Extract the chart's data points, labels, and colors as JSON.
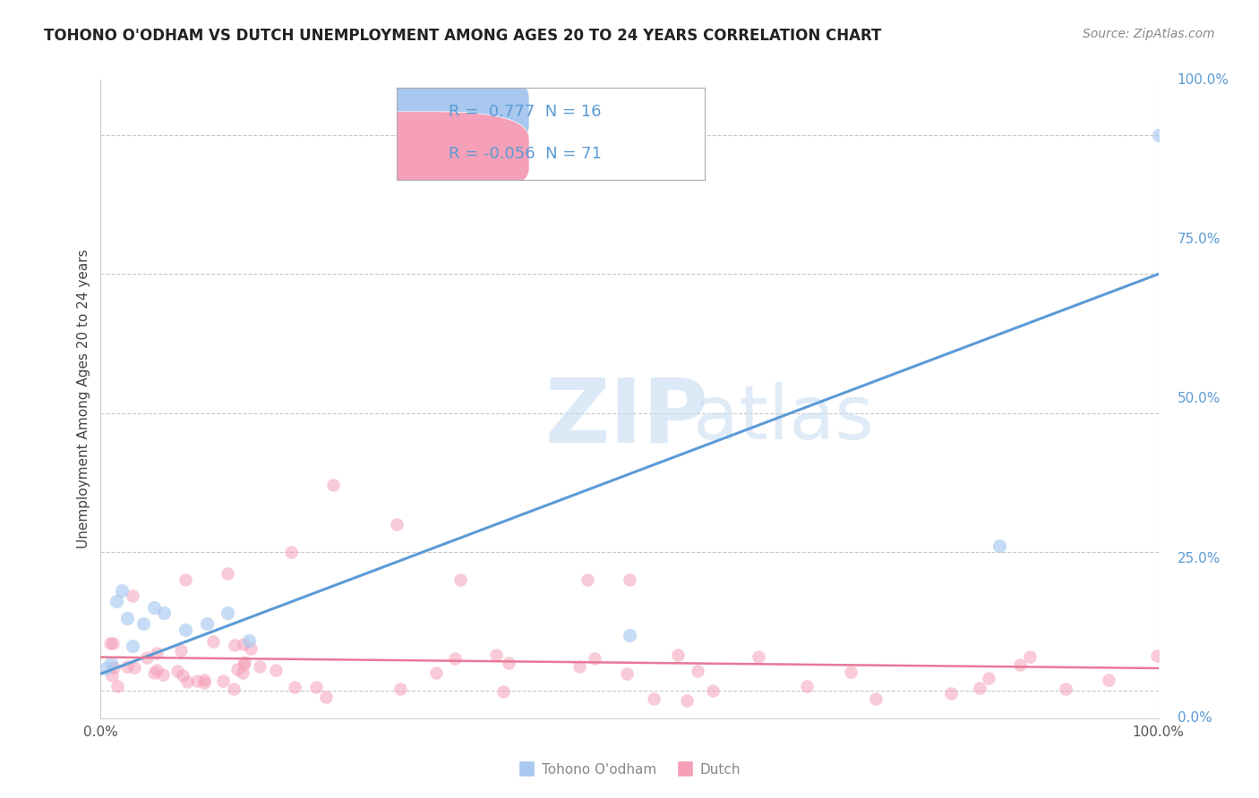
{
  "title": "TOHONO O'ODHAM VS DUTCH UNEMPLOYMENT AMONG AGES 20 TO 24 YEARS CORRELATION CHART",
  "source": "Source: ZipAtlas.com",
  "ylabel": "Unemployment Among Ages 20 to 24 years",
  "xlim": [
    0.0,
    1.0
  ],
  "ylim": [
    -0.05,
    1.1
  ],
  "x_tick_labels": [
    "0.0%",
    "100.0%"
  ],
  "y_tick_labels": [
    "0.0%",
    "25.0%",
    "50.0%",
    "75.0%",
    "100.0%"
  ],
  "y_tick_vals": [
    0.0,
    0.25,
    0.5,
    0.75,
    1.0
  ],
  "color_blue": "#A8C8F0",
  "color_pink": "#F5A0B8",
  "line_blue": "#5B9BD5",
  "line_pink": "#E87898",
  "watermark_zip": "ZIP",
  "watermark_atlas": "atlas",
  "tohono_line_x0": 0.0,
  "tohono_line_y0": 0.03,
  "tohono_line_x1": 1.0,
  "tohono_line_y1": 0.75,
  "dutch_line_x0": 0.0,
  "dutch_line_y0": 0.06,
  "dutch_line_x1": 1.0,
  "dutch_line_y1": 0.04
}
